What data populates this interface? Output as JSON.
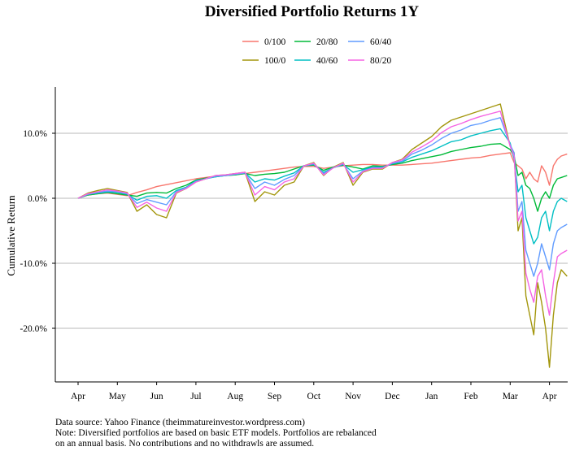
{
  "chart_data": {
    "type": "line",
    "title": "Diversified Portfolio Returns 1Y",
    "ylabel": "Cumulative Return",
    "xlabel": "",
    "x_ticks": [
      "Apr",
      "May",
      "Jun",
      "Jul",
      "Aug",
      "Sep",
      "Oct",
      "Nov",
      "Dec",
      "Jan",
      "Feb",
      "Mar",
      "Apr"
    ],
    "y_ticks": [
      "-20.0%",
      "-10.0%",
      "0.0%",
      "10.0%"
    ],
    "ylim": [
      -28,
      17
    ],
    "grid": "horizontal",
    "legend": "top",
    "x": [
      0,
      0.25,
      0.5,
      0.75,
      1.0,
      1.25,
      1.5,
      1.75,
      2.0,
      2.25,
      2.5,
      2.75,
      3.0,
      3.25,
      3.5,
      3.75,
      4.0,
      4.25,
      4.5,
      4.75,
      5.0,
      5.25,
      5.5,
      5.75,
      6.0,
      6.25,
      6.5,
      6.75,
      7.0,
      7.25,
      7.5,
      7.75,
      8.0,
      8.25,
      8.5,
      8.75,
      9.0,
      9.25,
      9.5,
      9.75,
      10.0,
      10.25,
      10.5,
      10.75,
      11.0,
      11.1,
      11.2,
      11.3,
      11.4,
      11.5,
      11.6,
      11.7,
      11.8,
      11.9,
      12.0,
      12.1,
      12.2,
      12.3,
      12.45
    ],
    "series": [
      {
        "name": "0/100",
        "color": "#f8766d",
        "values": [
          0,
          0.5,
          0.7,
          0.8,
          0.6,
          0.4,
          0.9,
          1.3,
          1.8,
          2.1,
          2.4,
          2.7,
          3.0,
          3.2,
          3.4,
          3.5,
          3.6,
          3.8,
          4.0,
          4.2,
          4.4,
          4.6,
          4.8,
          4.9,
          4.9,
          4.6,
          4.8,
          5.0,
          5.1,
          5.2,
          5.2,
          5.1,
          5.1,
          5.1,
          5.2,
          5.3,
          5.4,
          5.6,
          5.8,
          6.0,
          6.2,
          6.3,
          6.6,
          6.8,
          7.0,
          5.5,
          5.0,
          4.5,
          3.0,
          4.0,
          3.0,
          2.5,
          5.0,
          4.0,
          2.0,
          5.0,
          6.0,
          6.5,
          6.8
        ]
      },
      {
        "name": "100/0",
        "color": "#a3960c",
        "values": [
          0,
          0.8,
          1.2,
          1.5,
          1.2,
          0.9,
          -2.0,
          -1.0,
          -2.5,
          -3.0,
          0.8,
          1.5,
          2.5,
          3.0,
          3.5,
          3.6,
          3.8,
          4.0,
          -0.5,
          1.0,
          0.5,
          2.0,
          2.5,
          5.0,
          5.5,
          3.5,
          4.8,
          5.5,
          2.0,
          4.0,
          4.5,
          4.5,
          5.5,
          6.0,
          7.5,
          8.5,
          9.5,
          11.0,
          12.0,
          12.5,
          13.0,
          13.5,
          14.0,
          14.5,
          8.0,
          7.0,
          -5.0,
          -3.0,
          -15.0,
          -18.0,
          -21.0,
          -13.0,
          -16.0,
          -20.0,
          -26.0,
          -18.0,
          -13.0,
          -11.0,
          -12.0
        ]
      },
      {
        "name": "20/80",
        "color": "#00ba38",
        "values": [
          0,
          0.5,
          0.7,
          0.9,
          0.7,
          0.5,
          0.3,
          0.8,
          0.9,
          0.8,
          1.5,
          2.0,
          2.8,
          3.1,
          3.3,
          3.5,
          3.6,
          3.8,
          3.5,
          3.7,
          3.8,
          4.0,
          4.5,
          5.0,
          5.1,
          4.3,
          4.8,
          5.1,
          4.8,
          4.5,
          5.0,
          4.9,
          5.2,
          5.4,
          5.8,
          6.1,
          6.4,
          6.7,
          7.2,
          7.5,
          7.8,
          8.0,
          8.3,
          8.4,
          7.5,
          6.5,
          3.5,
          4.0,
          2.0,
          1.5,
          0.0,
          -2.0,
          0.0,
          1.0,
          0.0,
          2.0,
          3.0,
          3.2,
          3.5
        ]
      },
      {
        "name": "40/60",
        "color": "#00bfc4",
        "values": [
          0,
          0.6,
          0.8,
          1.0,
          0.9,
          0.6,
          -0.3,
          0.3,
          0.4,
          0.0,
          1.2,
          1.7,
          2.7,
          3.0,
          3.3,
          3.5,
          3.7,
          3.9,
          2.5,
          3.0,
          2.8,
          3.4,
          3.9,
          5.0,
          5.2,
          4.0,
          4.7,
          5.2,
          4.0,
          4.4,
          4.8,
          4.8,
          5.3,
          5.6,
          6.3,
          6.8,
          7.3,
          8.0,
          8.7,
          9.0,
          9.6,
          10.0,
          10.4,
          10.7,
          8.5,
          6.0,
          1.0,
          2.0,
          -3.0,
          -5.0,
          -7.0,
          -6.0,
          -3.0,
          -2.0,
          -5.0,
          -2.0,
          -0.5,
          0.0,
          -0.5
        ]
      },
      {
        "name": "60/40",
        "color": "#619cff",
        "values": [
          0,
          0.6,
          0.9,
          1.1,
          1.0,
          0.7,
          -0.8,
          -0.2,
          -0.6,
          -1.0,
          1.0,
          1.6,
          2.6,
          3.0,
          3.4,
          3.5,
          3.7,
          3.9,
          1.5,
          2.5,
          2.0,
          2.9,
          3.5,
          5.0,
          5.3,
          3.8,
          4.7,
          5.3,
          3.0,
          4.2,
          4.7,
          4.7,
          5.4,
          5.7,
          6.8,
          7.4,
          8.2,
          9.2,
          10.0,
          10.5,
          11.2,
          11.5,
          12.0,
          12.4,
          8.2,
          7.0,
          -2.0,
          -0.5,
          -8.0,
          -10.0,
          -12.0,
          -10.0,
          -7.0,
          -9.0,
          -11.0,
          -7.0,
          -5.0,
          -4.5,
          -4.0
        ]
      },
      {
        "name": "80/20",
        "color": "#f564e3",
        "values": [
          0,
          0.7,
          1.0,
          1.3,
          1.1,
          0.8,
          -1.4,
          -0.6,
          -1.5,
          -2.0,
          0.9,
          1.5,
          2.5,
          3.0,
          3.5,
          3.6,
          3.8,
          4.0,
          0.5,
          1.8,
          1.3,
          2.5,
          3.0,
          5.0,
          5.4,
          3.6,
          4.7,
          5.4,
          2.5,
          4.1,
          4.6,
          4.6,
          5.5,
          5.9,
          7.1,
          7.9,
          8.8,
          10.1,
          11.0,
          11.5,
          12.1,
          12.6,
          13.0,
          13.4,
          8.0,
          6.5,
          -3.5,
          -2.0,
          -11.5,
          -14.0,
          -16.0,
          -12.0,
          -11.0,
          -15.0,
          -18.0,
          -13.0,
          -9.0,
          -8.5,
          -8.0
        ]
      }
    ]
  },
  "legend_order": [
    "0/100",
    "20/80",
    "60/40",
    "100/0",
    "40/60",
    "80/20"
  ],
  "caption_lines": [
    "Data source: Yahoo Finance (theimmatureinvestor.wordpress.com)",
    "Note: Diversified portfolios are based on basic ETF models. Portfolios are rebalanced",
    "on an annual basis. No contributions and no withdrawls are assumed."
  ]
}
